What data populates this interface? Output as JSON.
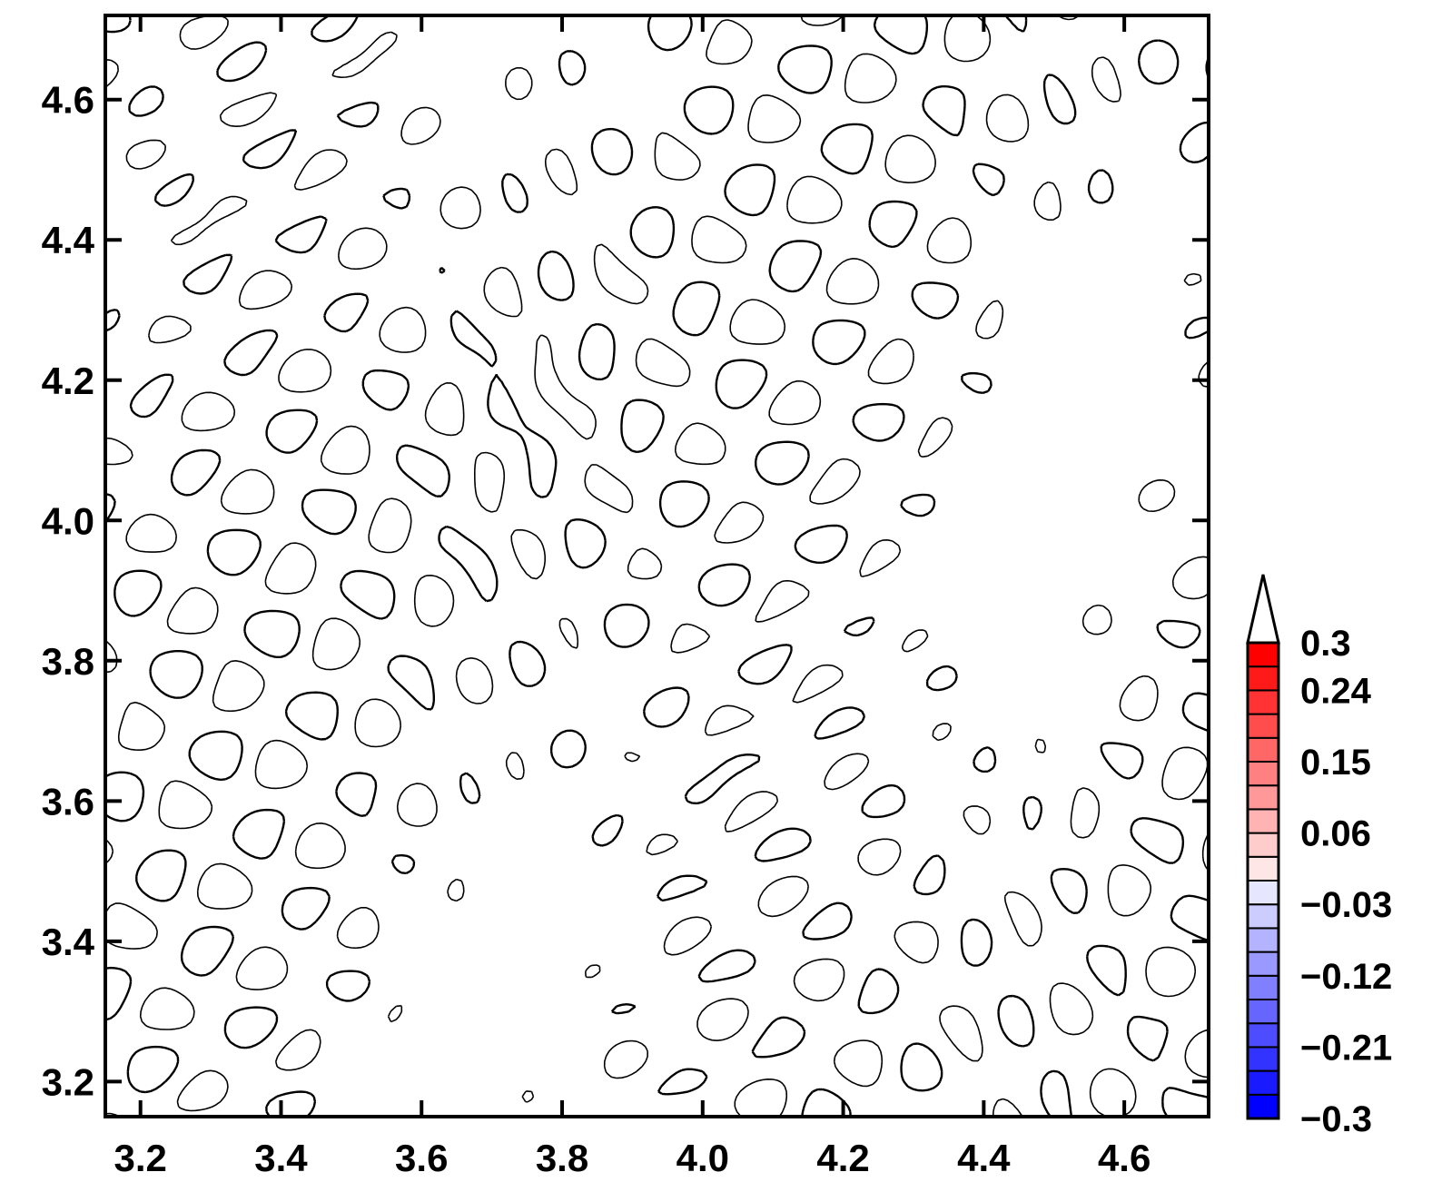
{
  "chart_data": {
    "type": "contour",
    "title": "",
    "xlabel": "",
    "ylabel": "",
    "xlim": [
      3.15,
      4.72
    ],
    "ylim": [
      3.15,
      4.72
    ],
    "x_ticks": [
      3.2,
      3.4,
      3.6,
      3.8,
      4.0,
      4.2,
      4.4,
      4.6
    ],
    "x_tick_labels": [
      "3.2",
      "3.4",
      "3.6",
      "3.8",
      "4.0",
      "4.2",
      "4.4",
      "4.6"
    ],
    "y_ticks": [
      3.2,
      3.4,
      3.6,
      3.8,
      4.0,
      4.2,
      4.4,
      4.6
    ],
    "y_tick_labels": [
      "3.2",
      "3.4",
      "3.6",
      "3.8",
      "4.0",
      "4.2",
      "4.4",
      "4.6"
    ],
    "contour_style": {
      "positive_line": "solid",
      "negative_line": "dashed",
      "line_color": "#000000"
    },
    "colorbar": {
      "levels": [
        -0.3,
        -0.27,
        -0.24,
        -0.21,
        -0.18,
        -0.15,
        -0.12,
        -0.09,
        -0.06,
        -0.03,
        0.0,
        0.03,
        0.06,
        0.09,
        0.12,
        0.15,
        0.18,
        0.21,
        0.24,
        0.27,
        0.3
      ],
      "labeled_values": [
        0.3,
        0.24,
        0.15,
        0.06,
        -0.03,
        -0.12,
        -0.21,
        -0.3
      ],
      "labels": [
        "0.3",
        "0.24",
        "0.15",
        "0.06",
        "−0.03",
        "−0.12",
        "−0.21",
        "−0.3"
      ],
      "extend": "max",
      "colors": [
        "#0000ff",
        "#1a1aff",
        "#3333ff",
        "#4d4dff",
        "#6666ff",
        "#8080ff",
        "#9999ff",
        "#b3b3ff",
        "#ccccff",
        "#e6e6ff",
        "#ffe6e6",
        "#ffcccc",
        "#ffb3b3",
        "#ff9999",
        "#ff8080",
        "#ff6666",
        "#ff4d4d",
        "#ff3333",
        "#ff1a1a",
        "#ff0000"
      ]
    }
  }
}
